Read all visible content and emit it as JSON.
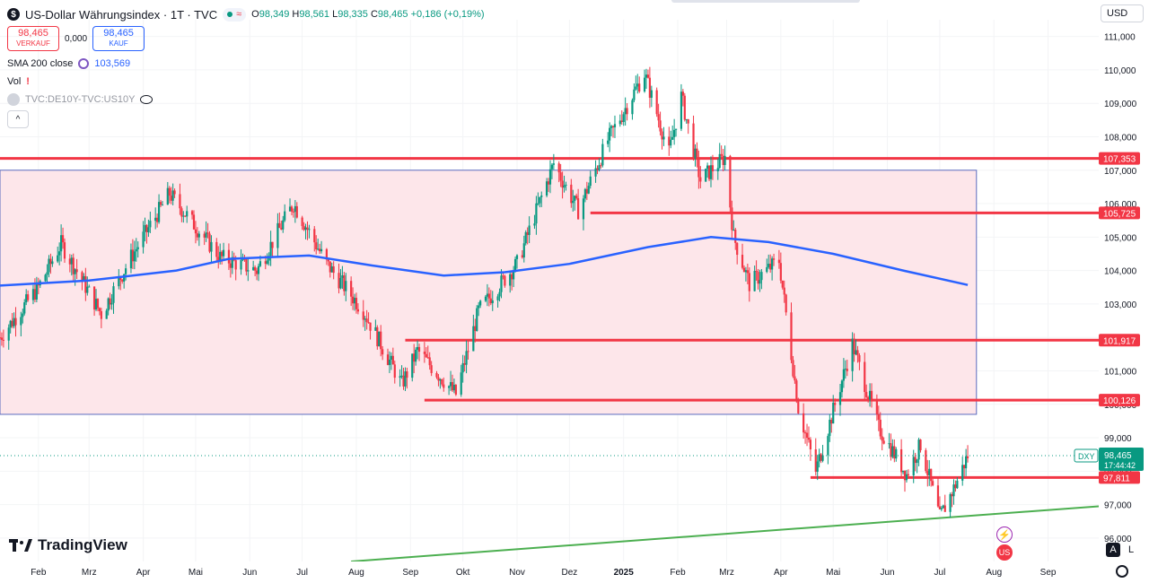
{
  "header": {
    "symbol_badge": "$",
    "title": "US-Dollar Währungsindex · 1T · TVC",
    "market_status_icon": "wave-icon",
    "ohlc": {
      "o_label": "O",
      "o": "98,349",
      "h_label": "H",
      "h": "98,561",
      "l_label": "L",
      "l": "98,335",
      "c_label": "C",
      "c": "98,465",
      "change": "+0,186 (+0,19%)"
    }
  },
  "trade": {
    "sell_price": "98,465",
    "sell_label": "VERKAUF",
    "spread": "0,000",
    "buy_price": "98,465",
    "buy_label": "KAUF"
  },
  "indicators": {
    "sma_label": "SMA 200 close",
    "sma_value": "103,569",
    "vol_label": "Vol",
    "vol_warning": "!",
    "compare_label": "TVC:DE10Y-TVC:US10Y"
  },
  "currency_label": "USD",
  "brand": "TradingView",
  "corner_buttons": {
    "auto": "A",
    "log": "L"
  },
  "colors": {
    "up": "#089981",
    "down": "#f23645",
    "sma": "#2962ff",
    "level": "#f23645",
    "trend": "#4caf50",
    "zone_fill": "#fde6ea",
    "zone_stroke": "#5b6bbf"
  },
  "chart_data": {
    "type": "candlestick",
    "y_axis_ticks": [
      "111,000",
      "110,000",
      "109,000",
      "108,000",
      "107,000",
      "106,000",
      "105,000",
      "104,000",
      "103,000",
      "102,000",
      "101,000",
      "100,000",
      "99,000",
      "98,000",
      "97,000",
      "96,000"
    ],
    "y_tick_values": [
      111,
      110,
      109,
      108,
      107,
      106,
      105,
      104,
      103,
      102,
      101,
      100,
      99,
      98,
      97,
      96
    ],
    "ylim": [
      95.3,
      111.5
    ],
    "x_axis_ticks": [
      {
        "label": "Feb",
        "date": "2024-02-01"
      },
      {
        "label": "Mrz",
        "date": "2024-03-01"
      },
      {
        "label": "Apr",
        "date": "2024-04-01"
      },
      {
        "label": "Mai",
        "date": "2024-05-01"
      },
      {
        "label": "Jun",
        "date": "2024-06-01"
      },
      {
        "label": "Jul",
        "date": "2024-07-01"
      },
      {
        "label": "Aug",
        "date": "2024-08-01"
      },
      {
        "label": "Sep",
        "date": "2024-09-01"
      },
      {
        "label": "Okt",
        "date": "2024-10-01"
      },
      {
        "label": "Nov",
        "date": "2024-11-01"
      },
      {
        "label": "Dez",
        "date": "2024-12-01"
      },
      {
        "label": "2025",
        "date": "2025-01-01"
      },
      {
        "label": "Feb",
        "date": "2025-02-01"
      },
      {
        "label": "Mrz",
        "date": "2025-03-01"
      },
      {
        "label": "Apr",
        "date": "2025-04-01"
      },
      {
        "label": "Mai",
        "date": "2025-05-01"
      },
      {
        "label": "Jun",
        "date": "2025-06-01"
      },
      {
        "label": "Jul",
        "date": "2025-07-01"
      },
      {
        "label": "Aug",
        "date": "2025-08-01"
      },
      {
        "label": "Sep",
        "date": "2025-09-01"
      }
    ],
    "xlim": [
      "2024-01-10",
      "2025-09-30"
    ],
    "price_path": [
      {
        "date": "2024-01-10",
        "close": 102.0
      },
      {
        "date": "2024-02-01",
        "close": 103.5
      },
      {
        "date": "2024-02-14",
        "close": 104.8
      },
      {
        "date": "2024-03-08",
        "close": 102.7
      },
      {
        "date": "2024-03-25",
        "close": 104.4
      },
      {
        "date": "2024-04-16",
        "close": 106.3
      },
      {
        "date": "2024-05-15",
        "close": 104.4
      },
      {
        "date": "2024-06-05",
        "close": 104.0
      },
      {
        "date": "2024-06-26",
        "close": 106.0
      },
      {
        "date": "2024-07-15",
        "close": 104.2
      },
      {
        "date": "2024-08-05",
        "close": 102.8
      },
      {
        "date": "2024-08-27",
        "close": 100.6
      },
      {
        "date": "2024-09-05",
        "close": 101.6
      },
      {
        "date": "2024-09-27",
        "close": 100.3
      },
      {
        "date": "2024-10-10",
        "close": 102.8
      },
      {
        "date": "2024-11-01",
        "close": 104.2
      },
      {
        "date": "2024-11-22",
        "close": 107.2
      },
      {
        "date": "2024-12-06",
        "close": 105.8
      },
      {
        "date": "2024-12-23",
        "close": 107.9
      },
      {
        "date": "2025-01-13",
        "close": 109.9
      },
      {
        "date": "2025-01-27",
        "close": 107.5
      },
      {
        "date": "2025-02-03",
        "close": 109.2
      },
      {
        "date": "2025-02-14",
        "close": 106.7
      },
      {
        "date": "2025-02-28",
        "close": 107.4
      },
      {
        "date": "2025-03-05",
        "close": 105.0
      },
      {
        "date": "2025-03-14",
        "close": 103.6
      },
      {
        "date": "2025-03-31",
        "close": 104.3
      },
      {
        "date": "2025-04-11",
        "close": 99.9
      },
      {
        "date": "2025-04-21",
        "close": 98.0
      },
      {
        "date": "2025-05-12",
        "close": 101.8
      },
      {
        "date": "2025-05-27",
        "close": 99.3
      },
      {
        "date": "2025-06-12",
        "close": 97.9
      },
      {
        "date": "2025-06-20",
        "close": 98.8
      },
      {
        "date": "2025-07-01",
        "close": 96.6
      },
      {
        "date": "2025-07-10",
        "close": 97.6
      },
      {
        "date": "2025-07-17",
        "close": 98.465
      }
    ],
    "sma200": {
      "name": "SMA 200 close",
      "points": [
        {
          "date": "2024-01-10",
          "value": 103.55
        },
        {
          "date": "2024-03-01",
          "value": 103.7
        },
        {
          "date": "2024-04-20",
          "value": 104.0
        },
        {
          "date": "2024-05-20",
          "value": 104.35
        },
        {
          "date": "2024-07-05",
          "value": 104.45
        },
        {
          "date": "2024-08-10",
          "value": 104.15
        },
        {
          "date": "2024-09-20",
          "value": 103.85
        },
        {
          "date": "2024-10-25",
          "value": 103.95
        },
        {
          "date": "2024-12-01",
          "value": 104.2
        },
        {
          "date": "2025-01-15",
          "value": 104.7
        },
        {
          "date": "2025-02-20",
          "value": 105.0
        },
        {
          "date": "2025-03-25",
          "value": 104.85
        },
        {
          "date": "2025-05-01",
          "value": 104.5
        },
        {
          "date": "2025-06-10",
          "value": 104.0
        },
        {
          "date": "2025-07-17",
          "value": 103.569
        }
      ]
    },
    "zone": {
      "x_start": "2024-01-10",
      "x_end": "2025-07-22",
      "y_low": 99.7,
      "y_high": 107.0
    },
    "levels": [
      {
        "value": 107.353,
        "label": "107,353",
        "x_start": "2024-01-10"
      },
      {
        "value": 105.725,
        "label": "105,725",
        "x_start": "2024-12-13"
      },
      {
        "value": 101.917,
        "label": "101,917",
        "x_start": "2024-08-29"
      },
      {
        "value": 100.126,
        "label": "100,126",
        "x_start": "2024-09-09"
      },
      {
        "value": 97.811,
        "label": "97,811",
        "x_start": "2025-04-18"
      }
    ],
    "trendline": {
      "x1": "2024-07-29",
      "y1": 95.3,
      "x2": "2025-09-30",
      "y2": 96.95
    },
    "last_price": {
      "symbol": "DXY",
      "value": 98.465,
      "label": "98,465",
      "countdown": "17:44:42"
    }
  }
}
